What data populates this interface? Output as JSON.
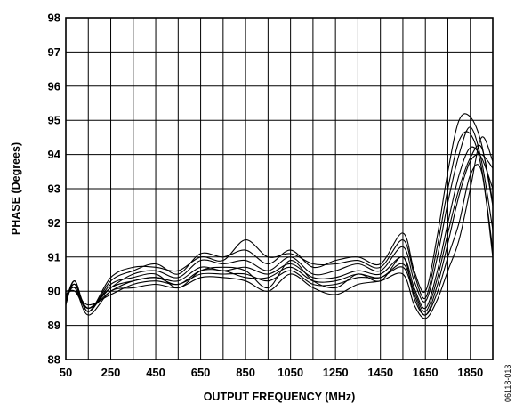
{
  "chart_data": {
    "type": "line",
    "title": "",
    "xlabel": "OUTPUT FREQUENCY (MHz)",
    "ylabel": "PHASE (Degrees)",
    "xlim": [
      50,
      1950
    ],
    "ylim": [
      88,
      98
    ],
    "xticks": [
      50,
      250,
      450,
      650,
      850,
      1050,
      1250,
      1450,
      1650,
      1850
    ],
    "yticks": [
      88,
      89,
      90,
      91,
      92,
      93,
      94,
      95,
      96,
      97,
      98
    ],
    "grid": true,
    "legend": "none",
    "figure_id": "06118-013",
    "series": [
      {
        "x": [
          50,
          90,
          150,
          250,
          350,
          450,
          550,
          650,
          750,
          850,
          950,
          1050,
          1150,
          1250,
          1350,
          1450,
          1550,
          1600,
          1650,
          1700,
          1750,
          1800,
          1850,
          1900,
          1950
        ],
        "values": [
          89.7,
          90.3,
          89.4,
          90.3,
          90.6,
          90.8,
          90.5,
          91.1,
          91.0,
          91.2,
          90.8,
          91.2,
          90.7,
          90.9,
          91.0,
          90.8,
          91.7,
          90.6,
          90.0,
          91.5,
          93.5,
          95.0,
          95.1,
          94.3,
          92.5
        ]
      },
      {
        "x": [
          50,
          90,
          150,
          250,
          350,
          450,
          550,
          650,
          750,
          850,
          950,
          1050,
          1150,
          1250,
          1350,
          1450,
          1550,
          1600,
          1650,
          1700,
          1750,
          1800,
          1850,
          1900,
          1950
        ],
        "values": [
          89.8,
          90.2,
          89.5,
          90.1,
          90.5,
          90.6,
          90.4,
          90.9,
          90.8,
          90.9,
          90.6,
          91.0,
          90.5,
          90.6,
          90.8,
          90.6,
          91.3,
          90.3,
          89.7,
          90.9,
          92.6,
          94.0,
          94.8,
          93.8,
          91.8
        ]
      },
      {
        "x": [
          50,
          90,
          150,
          250,
          350,
          450,
          550,
          650,
          750,
          850,
          950,
          1050,
          1150,
          1250,
          1350,
          1450,
          1550,
          1600,
          1650,
          1700,
          1750,
          1800,
          1850,
          1900,
          1950
        ],
        "values": [
          89.9,
          90.1,
          89.5,
          90.0,
          90.3,
          90.4,
          90.3,
          90.7,
          90.6,
          90.7,
          90.5,
          90.8,
          90.4,
          90.4,
          90.6,
          90.5,
          91.0,
          90.1,
          89.5,
          90.5,
          92.0,
          93.4,
          94.2,
          93.9,
          93.0
        ]
      },
      {
        "x": [
          50,
          90,
          150,
          250,
          350,
          450,
          550,
          650,
          750,
          850,
          950,
          1050,
          1150,
          1250,
          1350,
          1450,
          1550,
          1600,
          1650,
          1700,
          1750,
          1800,
          1850,
          1900,
          1950
        ],
        "values": [
          90.0,
          90.0,
          89.6,
          89.9,
          90.2,
          90.3,
          90.2,
          90.5,
          90.5,
          90.5,
          90.3,
          90.6,
          90.2,
          90.2,
          90.4,
          90.4,
          90.7,
          89.9,
          89.3,
          90.1,
          91.4,
          92.8,
          93.8,
          94.0,
          93.6
        ]
      },
      {
        "x": [
          50,
          90,
          150,
          250,
          350,
          450,
          550,
          650,
          750,
          850,
          950,
          1050,
          1150,
          1250,
          1350,
          1450,
          1550,
          1600,
          1650,
          1700,
          1750,
          1800,
          1850,
          1900,
          1950
        ],
        "values": [
          89.7,
          90.2,
          89.4,
          90.2,
          90.4,
          90.5,
          90.1,
          90.6,
          90.7,
          90.6,
          90.1,
          90.9,
          90.3,
          90.1,
          90.5,
          90.3,
          91.0,
          89.8,
          89.3,
          89.9,
          91.0,
          92.0,
          93.4,
          93.5,
          91.0
        ]
      },
      {
        "x": [
          50,
          90,
          150,
          250,
          350,
          450,
          550,
          650,
          750,
          850,
          950,
          1050,
          1150,
          1250,
          1350,
          1450,
          1550,
          1600,
          1650,
          1700,
          1750,
          1800,
          1850,
          1900,
          1950
        ],
        "values": [
          89.8,
          90.1,
          89.3,
          90.0,
          90.1,
          90.2,
          90.1,
          90.4,
          90.4,
          90.3,
          90.0,
          90.5,
          90.1,
          89.9,
          90.2,
          90.3,
          90.5,
          89.6,
          89.2,
          89.7,
          90.6,
          91.5,
          93.0,
          94.5,
          93.8
        ]
      },
      {
        "x": [
          50,
          90,
          150,
          250,
          350,
          450,
          550,
          650,
          750,
          850,
          950,
          1050,
          1150,
          1250,
          1350,
          1450,
          1550,
          1600,
          1650,
          1700,
          1750,
          1800,
          1850,
          1900,
          1950
        ],
        "values": [
          89.6,
          90.3,
          89.4,
          90.4,
          90.7,
          90.7,
          90.6,
          91.0,
          90.9,
          91.5,
          91.0,
          91.1,
          90.8,
          90.8,
          90.9,
          90.7,
          91.5,
          90.5,
          89.8,
          91.2,
          93.0,
          94.4,
          94.6,
          93.6,
          91.2
        ]
      },
      {
        "x": [
          50,
          90,
          150,
          250,
          350,
          450,
          550,
          650,
          750,
          850,
          950,
          1050,
          1150,
          1250,
          1350,
          1450,
          1550,
          1600,
          1650,
          1700,
          1750,
          1800,
          1850,
          1900,
          1950
        ],
        "values": [
          89.9,
          90.0,
          89.5,
          90.1,
          90.3,
          90.4,
          90.2,
          90.6,
          90.6,
          90.4,
          90.4,
          90.7,
          90.3,
          90.3,
          90.5,
          90.4,
          90.8,
          90.0,
          89.4,
          90.3,
          91.7,
          93.0,
          93.9,
          94.2,
          92.6
        ]
      }
    ]
  }
}
